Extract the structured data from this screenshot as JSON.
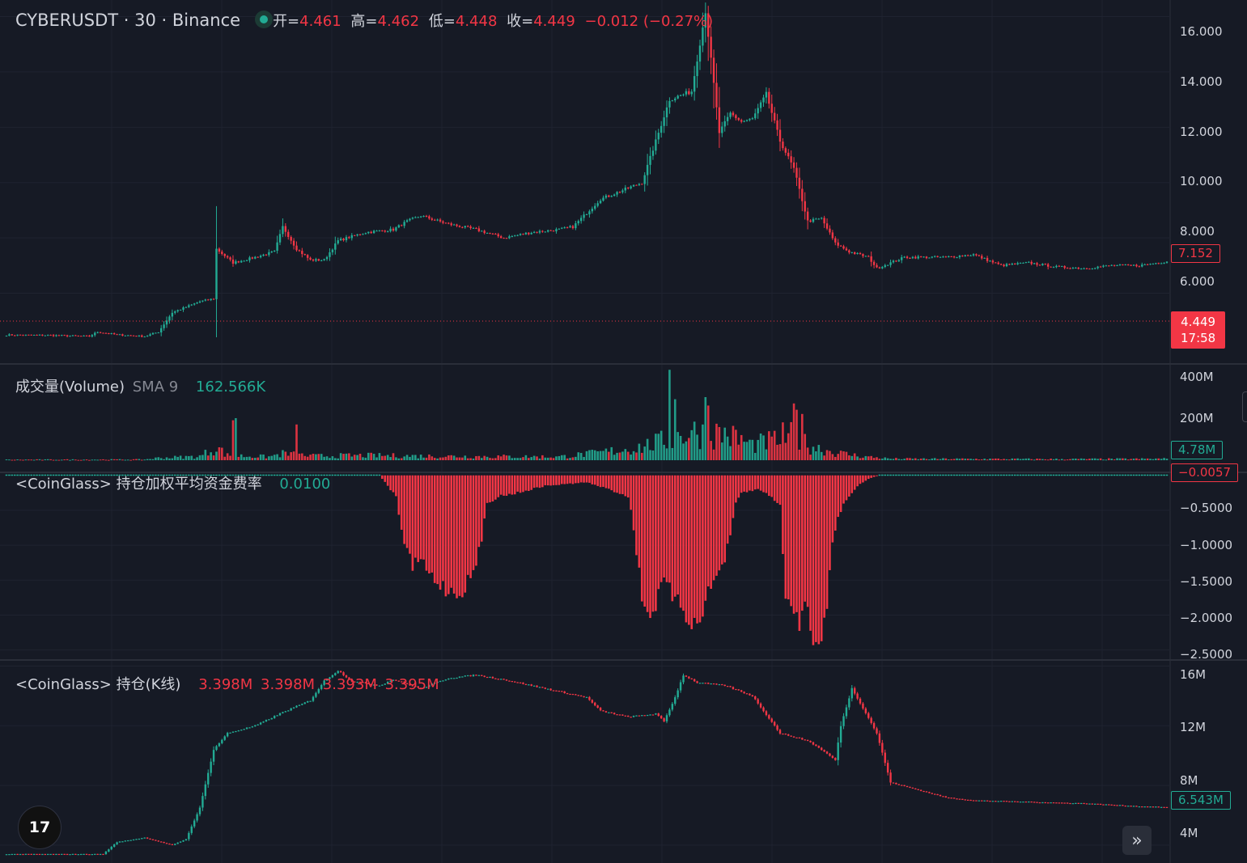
{
  "header": {
    "symbol": "CYBERUSDT · 30 · Binance",
    "open_label": "开=",
    "open": "4.461",
    "high_label": "高=",
    "high": "4.462",
    "low_label": "低=",
    "low": "4.448",
    "close_label": "收=",
    "close": "4.449",
    "change": "−0.012 (−0.27%)"
  },
  "panes": {
    "volume": {
      "title": "成交量(Volume)",
      "sma": "SMA 9",
      "value": "162.566K"
    },
    "funding": {
      "title": "<CoinGlass> 持仓加权平均资金费率",
      "value": "0.0100"
    },
    "oi": {
      "title": "<CoinGlass> 持仓(K线)",
      "values": [
        "3.398M",
        "3.398M",
        "3.393M",
        "3.395M"
      ]
    }
  },
  "price_tags": {
    "ref": "7.152",
    "last": "4.449",
    "countdown": "17:58",
    "volume": "4.78M",
    "funding": "−0.0057",
    "oi": "6.543M"
  },
  "colors": {
    "up": "#22ab94",
    "down": "#f23645",
    "background": "#161a25",
    "grid": "#1f2330"
  },
  "icons": {
    "logo": "tradingview-logo-icon",
    "scroll": "double-chevron-right-icon"
  },
  "chart_data": [
    {
      "type": "candlestick",
      "title": "CYBERUSDT · 30 · Binance",
      "y_ticks": [
        "16.000",
        "14.000",
        "12.000",
        "10.000",
        "8.000",
        "6.000"
      ],
      "ylim": [
        3.5,
        16.6
      ],
      "y_tick_values": [
        16,
        14,
        12,
        10,
        8,
        6
      ],
      "close_anchors": [
        [
          0,
          4.49
        ],
        [
          15,
          4.48
        ],
        [
          30,
          4.44
        ],
        [
          33,
          4.6
        ],
        [
          40,
          4.5
        ],
        [
          50,
          4.44
        ],
        [
          55,
          4.6
        ],
        [
          60,
          5.3
        ],
        [
          70,
          5.7
        ],
        [
          75,
          5.8
        ],
        [
          76,
          7.6
        ],
        [
          82,
          7.1
        ],
        [
          90,
          7.3
        ],
        [
          97,
          7.5
        ],
        [
          100,
          8.4
        ],
        [
          105,
          7.6
        ],
        [
          110,
          7.2
        ],
        [
          115,
          7.2
        ],
        [
          120,
          7.9
        ],
        [
          130,
          8.2
        ],
        [
          140,
          8.3
        ],
        [
          145,
          8.6
        ],
        [
          150,
          8.8
        ],
        [
          160,
          8.5
        ],
        [
          170,
          8.3
        ],
        [
          180,
          8.0
        ],
        [
          190,
          8.2
        ],
        [
          200,
          8.3
        ],
        [
          205,
          8.4
        ],
        [
          215,
          9.4
        ],
        [
          230,
          10.0
        ],
        [
          240,
          13.0
        ],
        [
          248,
          13.3
        ],
        [
          253,
          16.2
        ],
        [
          258,
          11.8
        ],
        [
          262,
          12.5
        ],
        [
          266,
          12.2
        ],
        [
          270,
          12.3
        ],
        [
          275,
          13.2
        ],
        [
          280,
          11.5
        ],
        [
          285,
          10.5
        ],
        [
          290,
          8.6
        ],
        [
          295,
          8.7
        ],
        [
          300,
          7.8
        ],
        [
          305,
          7.5
        ],
        [
          312,
          7.3
        ],
        [
          315,
          6.9
        ],
        [
          325,
          7.3
        ],
        [
          340,
          7.3
        ],
        [
          350,
          7.4
        ],
        [
          360,
          7.0
        ],
        [
          370,
          7.1
        ],
        [
          380,
          6.95
        ],
        [
          390,
          6.9
        ],
        [
          400,
          7.0
        ],
        [
          410,
          7.0
        ],
        [
          420,
          7.15
        ]
      ]
    },
    {
      "type": "bar",
      "title": "成交量(Volume)",
      "series_name": "SMA 9",
      "y_ticks": [
        "400M",
        "200M"
      ],
      "y_tick_values": [
        400,
        200
      ],
      "ylim": [
        0,
        450
      ],
      "unit": "M",
      "level_anchors": [
        [
          0,
          3
        ],
        [
          50,
          4
        ],
        [
          55,
          12
        ],
        [
          70,
          20
        ],
        [
          76,
          70
        ],
        [
          80,
          25
        ],
        [
          95,
          18
        ],
        [
          100,
          35
        ],
        [
          110,
          22
        ],
        [
          130,
          25
        ],
        [
          150,
          22
        ],
        [
          170,
          20
        ],
        [
          200,
          18
        ],
        [
          205,
          25
        ],
        [
          215,
          40
        ],
        [
          230,
          70
        ],
        [
          240,
          110
        ],
        [
          248,
          150
        ],
        [
          253,
          140
        ],
        [
          260,
          140
        ],
        [
          270,
          80
        ],
        [
          280,
          110
        ],
        [
          285,
          130
        ],
        [
          290,
          80
        ],
        [
          300,
          40
        ],
        [
          310,
          20
        ],
        [
          320,
          8
        ],
        [
          340,
          7
        ],
        [
          380,
          6
        ],
        [
          410,
          7
        ],
        [
          420,
          8
        ]
      ],
      "spikes": [
        [
          240,
          430
        ],
        [
          242,
          290
        ],
        [
          253,
          300
        ],
        [
          254,
          260
        ],
        [
          285,
          270
        ],
        [
          286,
          240
        ],
        [
          288,
          220
        ],
        [
          281,
          180
        ],
        [
          82,
          190
        ],
        [
          83,
          200
        ],
        [
          105,
          170
        ]
      ]
    },
    {
      "type": "bar",
      "title": "<CoinGlass> 持仓加权平均资金费率",
      "y_ticks": [
        "−0.5000",
        "−1.0000",
        "−1.5000",
        "−2.0000",
        "−2.5000"
      ],
      "y_tick_values": [
        -0.5,
        -1.0,
        -1.5,
        -2.0,
        -2.5
      ],
      "ylim": [
        -2.62,
        0.02
      ],
      "value_anchors": [
        [
          0,
          0.0
        ],
        [
          135,
          0.0
        ],
        [
          136,
          -0.05
        ],
        [
          138,
          -0.15
        ],
        [
          141,
          -0.3
        ],
        [
          142,
          -0.6
        ],
        [
          145,
          -1.1
        ],
        [
          147,
          -1.3
        ],
        [
          150,
          -1.2
        ],
        [
          152,
          -1.35
        ],
        [
          155,
          -1.5
        ],
        [
          160,
          -1.65
        ],
        [
          163,
          -1.7
        ],
        [
          166,
          -1.6
        ],
        [
          170,
          -1.3
        ],
        [
          172,
          -0.9
        ],
        [
          174,
          -0.4
        ],
        [
          178,
          -0.3
        ],
        [
          185,
          -0.25
        ],
        [
          195,
          -0.15
        ],
        [
          210,
          -0.1
        ],
        [
          218,
          -0.2
        ],
        [
          225,
          -0.3
        ],
        [
          226,
          -0.5
        ],
        [
          228,
          -1.1
        ],
        [
          230,
          -1.7
        ],
        [
          232,
          -2.0
        ],
        [
          235,
          -1.85
        ],
        [
          238,
          -1.5
        ],
        [
          242,
          -1.8
        ],
        [
          245,
          -1.9
        ],
        [
          248,
          -2.15
        ],
        [
          250,
          -2.1
        ],
        [
          252,
          -1.9
        ],
        [
          255,
          -1.6
        ],
        [
          260,
          -1.2
        ],
        [
          262,
          -0.9
        ],
        [
          264,
          -0.4
        ],
        [
          266,
          -0.25
        ],
        [
          272,
          -0.2
        ],
        [
          277,
          -0.3
        ],
        [
          280,
          -0.45
        ],
        [
          282,
          -1.7
        ],
        [
          285,
          -2.0
        ],
        [
          287,
          -2.1
        ],
        [
          289,
          -1.8
        ],
        [
          292,
          -2.3
        ],
        [
          294,
          -2.5
        ],
        [
          297,
          -1.8
        ],
        [
          299,
          -0.9
        ],
        [
          301,
          -0.6
        ],
        [
          304,
          -0.35
        ],
        [
          308,
          -0.15
        ],
        [
          312,
          -0.05
        ],
        [
          316,
          0.005
        ],
        [
          330,
          0.01
        ],
        [
          420,
          0.01
        ]
      ]
    },
    {
      "type": "candlestick",
      "title": "<CoinGlass> 持仓(K线)",
      "y_ticks": [
        "16M",
        "12M",
        "8M",
        "4M"
      ],
      "y_tick_values": [
        16,
        12,
        8,
        4
      ],
      "ylim": [
        2.8,
        16.3
      ],
      "unit": "M",
      "close_anchors": [
        [
          0,
          3.4
        ],
        [
          35,
          3.4
        ],
        [
          40,
          4.2
        ],
        [
          50,
          4.5
        ],
        [
          60,
          4.0
        ],
        [
          65,
          4.4
        ],
        [
          70,
          6.5
        ],
        [
          75,
          10.4
        ],
        [
          80,
          11.5
        ],
        [
          90,
          12.0
        ],
        [
          100,
          12.9
        ],
        [
          110,
          13.7
        ],
        [
          115,
          15.0
        ],
        [
          120,
          15.7
        ],
        [
          125,
          15.0
        ],
        [
          135,
          14.7
        ],
        [
          140,
          15.1
        ],
        [
          150,
          14.5
        ],
        [
          160,
          15.2
        ],
        [
          170,
          15.4
        ],
        [
          180,
          15.1
        ],
        [
          195,
          14.5
        ],
        [
          210,
          13.9
        ],
        [
          215,
          13.0
        ],
        [
          225,
          12.6
        ],
        [
          235,
          12.8
        ],
        [
          238,
          12.3
        ],
        [
          242,
          13.9
        ],
        [
          245,
          15.4
        ],
        [
          250,
          14.9
        ],
        [
          260,
          14.7
        ],
        [
          270,
          14.0
        ],
        [
          280,
          11.5
        ],
        [
          290,
          11.0
        ],
        [
          295,
          10.4
        ],
        [
          300,
          9.7
        ],
        [
          302,
          12.0
        ],
        [
          306,
          14.5
        ],
        [
          310,
          13.2
        ],
        [
          315,
          11.5
        ],
        [
          320,
          8.2
        ],
        [
          330,
          7.7
        ],
        [
          340,
          7.2
        ],
        [
          350,
          7.0
        ],
        [
          370,
          6.9
        ],
        [
          390,
          6.8
        ],
        [
          410,
          6.6
        ],
        [
          420,
          6.54
        ]
      ]
    }
  ]
}
